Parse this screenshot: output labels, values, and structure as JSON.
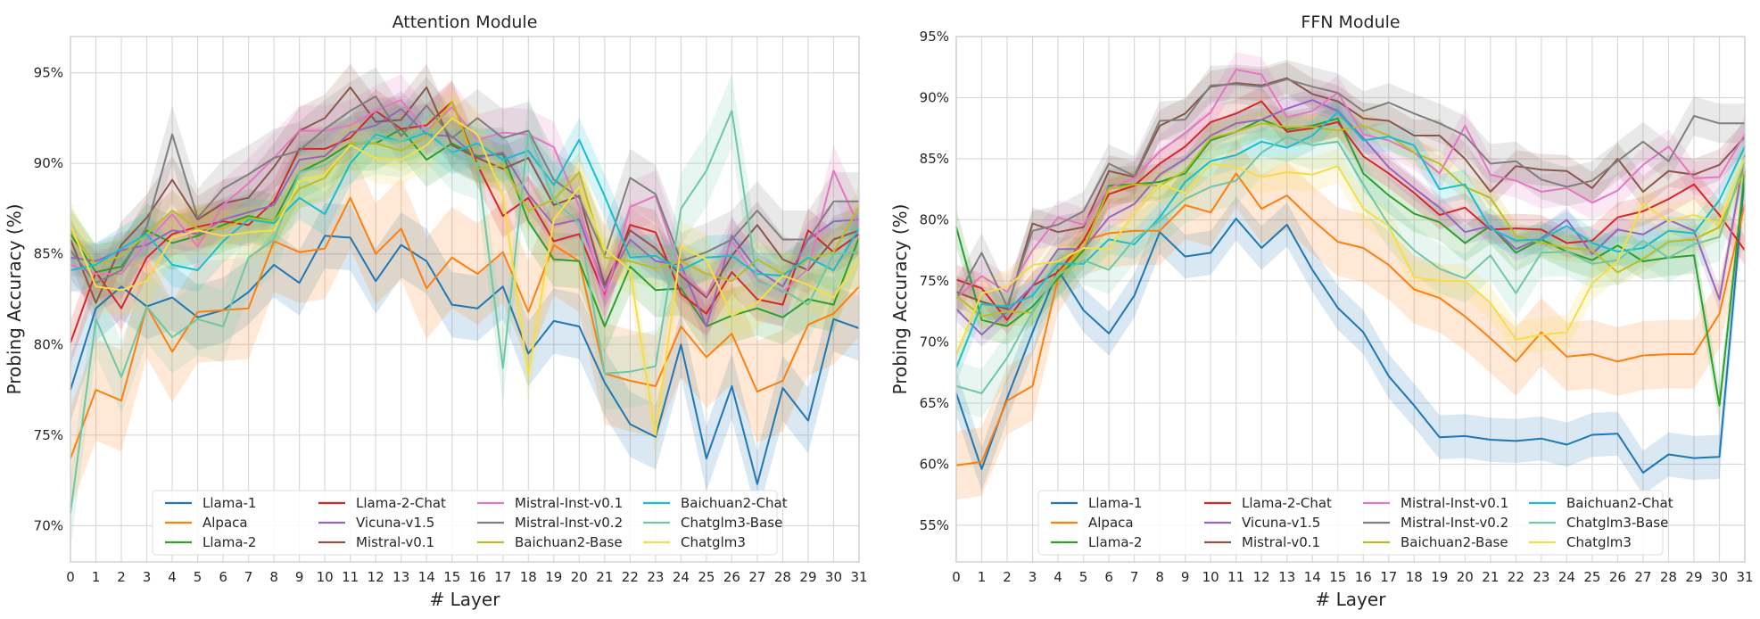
{
  "chart_data": [
    {
      "type": "line",
      "title": "Attention Module",
      "xlabel": "# Layer",
      "ylabel": "Probing Accuracy (%)",
      "x": [
        0,
        1,
        2,
        3,
        4,
        5,
        6,
        7,
        8,
        9,
        10,
        11,
        12,
        13,
        14,
        15,
        16,
        17,
        18,
        19,
        20,
        21,
        22,
        23,
        24,
        25,
        26,
        27,
        28,
        29,
        30,
        31
      ],
      "xlim": [
        0,
        31
      ],
      "ylim": [
        68.0,
        97.0
      ],
      "yticks": [
        70,
        75,
        80,
        85,
        90,
        95
      ],
      "yticklabels": [
        "70%",
        "75%",
        "80%",
        "85%",
        "90%",
        "95%"
      ],
      "grid": true,
      "legend_position": "lower center",
      "series": [
        {
          "name": "Llama-1",
          "values": [
            77.5,
            82.0,
            83.2,
            82.1,
            82.6,
            81.5,
            81.9,
            82.9,
            84.4,
            83.4,
            86.0,
            85.9,
            83.5,
            85.5,
            84.6,
            82.2,
            82.0,
            83.2,
            79.5,
            81.3,
            81.0,
            77.9,
            75.6,
            74.9,
            80.0,
            73.7,
            77.7,
            72.3,
            77.6,
            75.8,
            81.4,
            80.9
          ]
        },
        {
          "name": "Alpaca",
          "values": [
            73.7,
            77.5,
            76.9,
            82.1,
            79.6,
            81.8,
            81.9,
            82.0,
            85.7,
            85.1,
            85.3,
            88.1,
            85.0,
            86.4,
            83.1,
            84.8,
            83.9,
            85.1,
            81.8,
            85.5,
            84.6,
            78.4,
            78.0,
            77.7,
            81.0,
            79.3,
            80.6,
            77.4,
            78.0,
            81.1,
            81.7,
            83.2
          ]
        },
        {
          "name": "Llama-2",
          "values": [
            86.1,
            84.0,
            84.3,
            86.3,
            85.6,
            86.0,
            86.6,
            87.1,
            86.8,
            89.5,
            90.2,
            91.1,
            91.1,
            91.9,
            90.2,
            91.1,
            90.4,
            90.5,
            86.8,
            84.7,
            84.6,
            81.0,
            84.3,
            83.0,
            83.1,
            81.0,
            81.6,
            82.0,
            81.5,
            82.5,
            82.2,
            85.9
          ]
        },
        {
          "name": "Llama-2-Chat",
          "values": [
            80.1,
            84.0,
            82.0,
            84.8,
            86.1,
            86.5,
            86.8,
            86.6,
            87.9,
            90.8,
            90.8,
            91.4,
            92.9,
            91.9,
            92.1,
            93.4,
            89.9,
            87.1,
            88.1,
            85.7,
            86.1,
            82.7,
            86.6,
            86.2,
            82.8,
            81.7,
            84.0,
            82.5,
            82.2,
            86.3,
            85.1,
            86.1
          ]
        },
        {
          "name": "Vicuna-v1.5",
          "values": [
            84.8,
            84.6,
            85.2,
            85.5,
            86.3,
            86.1,
            86.9,
            87.3,
            87.7,
            90.2,
            90.4,
            91.7,
            92.1,
            93.0,
            91.6,
            91.5,
            90.3,
            90.6,
            88.3,
            86.6,
            86.9,
            83.1,
            85.8,
            84.6,
            84.4,
            81.0,
            86.0,
            84.1,
            83.2,
            85.8,
            86.8,
            86.9
          ]
        },
        {
          "name": "Mistral-v0.1",
          "values": [
            85.8,
            82.3,
            85.5,
            87.0,
            89.1,
            86.9,
            87.8,
            88.1,
            89.8,
            91.8,
            92.5,
            94.2,
            92.3,
            92.4,
            94.2,
            91.0,
            90.3,
            89.7,
            90.3,
            87.7,
            88.2,
            83.3,
            86.3,
            85.3,
            83.8,
            82.6,
            84.9,
            86.6,
            84.7,
            84.1,
            85.8,
            86.3
          ]
        },
        {
          "name": "Mistral-Inst-v0.1",
          "values": [
            84.4,
            83.9,
            83.9,
            85.7,
            87.2,
            85.4,
            87.7,
            88.9,
            90.3,
            91.8,
            91.8,
            92.1,
            92.9,
            93.5,
            91.8,
            93.1,
            91.3,
            91.7,
            91.6,
            90.9,
            87.6,
            82.5,
            87.6,
            88.2,
            84.0,
            82.7,
            85.7,
            83.6,
            82.9,
            84.2,
            89.6,
            86.5
          ]
        },
        {
          "name": "Mistral-Inst-v0.2",
          "values": [
            85.2,
            83.4,
            84.1,
            86.5,
            91.6,
            87.0,
            88.6,
            89.4,
            90.3,
            90.7,
            91.9,
            92.9,
            93.7,
            91.5,
            93.2,
            91.4,
            92.5,
            91.4,
            91.8,
            89.1,
            88.1,
            84.9,
            89.2,
            88.3,
            84.6,
            85.1,
            85.8,
            87.4,
            85.8,
            85.8,
            87.9,
            87.9
          ]
        },
        {
          "name": "Baichuan2-Base",
          "values": [
            86.3,
            84.4,
            84.9,
            86.1,
            87.4,
            86.4,
            86.4,
            87.0,
            86.8,
            88.6,
            89.2,
            91.1,
            91.1,
            90.7,
            91.5,
            93.4,
            89.7,
            89.9,
            87.4,
            88.0,
            89.5,
            84.8,
            84.6,
            84.2,
            84.6,
            83.9,
            83.5,
            84.7,
            83.9,
            84.7,
            85.1,
            87.6
          ]
        },
        {
          "name": "Baichuan2-Chat",
          "values": [
            84.1,
            84.4,
            85.3,
            86.1,
            84.4,
            84.1,
            85.7,
            86.9,
            86.7,
            88.1,
            87.2,
            90.0,
            91.6,
            91.2,
            91.7,
            90.6,
            91.1,
            90.2,
            90.7,
            88.8,
            91.3,
            88.2,
            84.8,
            84.9,
            84.1,
            84.8,
            84.9,
            83.9,
            83.8,
            84.8,
            84.1,
            86.4
          ]
        },
        {
          "name": "Chatglm3-Base",
          "values": [
            70.7,
            81.4,
            78.2,
            82.1,
            80.4,
            81.4,
            81.0,
            84.8,
            85.8,
            89.5,
            89.9,
            90.9,
            91.4,
            91.2,
            92.0,
            90.5,
            90.0,
            78.7,
            91.7,
            88.0,
            86.7,
            78.4,
            78.5,
            78.8,
            87.5,
            89.6,
            92.9,
            83.5,
            83.0,
            82.2,
            85.0,
            85.1
          ]
        },
        {
          "name": "Chatglm3",
          "values": [
            86.6,
            83.2,
            83.0,
            83.5,
            85.9,
            86.3,
            86.0,
            86.2,
            86.3,
            89.0,
            89.4,
            91.0,
            90.3,
            90.2,
            91.0,
            92.5,
            91.6,
            88.2,
            78.3,
            86.9,
            88.7,
            85.3,
            84.1,
            75.0,
            85.4,
            84.7,
            81.6,
            82.3,
            83.8,
            83.3,
            82.6,
            84.7
          ]
        }
      ]
    },
    {
      "type": "line",
      "title": "FFN Module",
      "xlabel": "# Layer",
      "ylabel": "Probing Accuracy (%)",
      "x": [
        0,
        1,
        2,
        3,
        4,
        5,
        6,
        7,
        8,
        9,
        10,
        11,
        12,
        13,
        14,
        15,
        16,
        17,
        18,
        19,
        20,
        21,
        22,
        23,
        24,
        25,
        26,
        27,
        28,
        29,
        30,
        31
      ],
      "xlim": [
        0,
        31
      ],
      "ylim": [
        52.0,
        95.0
      ],
      "yticks": [
        55,
        60,
        65,
        70,
        75,
        80,
        85,
        90,
        95
      ],
      "yticklabels": [
        "55%",
        "60%",
        "65%",
        "70%",
        "75%",
        "80%",
        "85%",
        "90%",
        "95%"
      ],
      "grid": true,
      "legend_position": "lower center",
      "series": [
        {
          "name": "Llama-1",
          "values": [
            65.8,
            59.6,
            65.4,
            70.8,
            75.9,
            72.6,
            70.7,
            73.8,
            79.0,
            77.0,
            77.3,
            80.1,
            77.7,
            79.6,
            75.9,
            72.8,
            70.8,
            67.2,
            64.8,
            62.2,
            62.3,
            62.0,
            61.9,
            62.1,
            61.6,
            62.4,
            62.5,
            59.3,
            60.8,
            60.5,
            60.6,
            83.7
          ]
        },
        {
          "name": "Alpaca",
          "values": [
            59.9,
            60.2,
            65.2,
            66.4,
            75.2,
            78.3,
            78.9,
            79.1,
            79.1,
            81.2,
            80.6,
            83.8,
            80.9,
            82.0,
            80.0,
            78.2,
            77.7,
            76.3,
            74.3,
            73.6,
            72.1,
            70.3,
            68.4,
            70.8,
            68.8,
            69.0,
            68.4,
            68.9,
            69.0,
            69.0,
            72.3,
            81.3
          ]
        },
        {
          "name": "Llama-2",
          "values": [
            79.4,
            71.8,
            71.3,
            72.9,
            75.2,
            77.5,
            82.8,
            82.9,
            83.1,
            83.8,
            86.5,
            87.2,
            88.2,
            87.4,
            87.7,
            88.3,
            83.8,
            82.0,
            80.5,
            79.8,
            78.1,
            79.5,
            77.3,
            78.4,
            77.4,
            76.7,
            77.9,
            76.6,
            76.9,
            77.1,
            64.8,
            84.0
          ]
        },
        {
          "name": "Llama-2-Chat",
          "values": [
            75.1,
            74.4,
            71.8,
            74.6,
            75.7,
            78.3,
            82.1,
            82.8,
            84.6,
            86.0,
            88.0,
            88.7,
            89.7,
            87.2,
            87.5,
            88.0,
            85.2,
            83.8,
            82.2,
            80.4,
            81.0,
            79.2,
            79.3,
            79.2,
            78.1,
            78.3,
            80.2,
            80.7,
            81.7,
            82.9,
            80.4,
            77.5
          ]
        },
        {
          "name": "Vicuna-v1.5",
          "values": [
            72.7,
            70.6,
            72.5,
            74.6,
            77.6,
            77.6,
            80.2,
            81.3,
            83.7,
            85.0,
            86.9,
            87.9,
            88.2,
            89.1,
            89.8,
            88.9,
            86.7,
            84.3,
            82.6,
            81.0,
            79.0,
            79.5,
            77.6,
            78.5,
            80.0,
            77.2,
            79.2,
            78.8,
            80.0,
            79.1,
            73.5,
            85.3
          ]
        },
        {
          "name": "Mistral-v0.1",
          "values": [
            74.1,
            73.3,
            72.7,
            79.7,
            79.0,
            79.4,
            84.0,
            83.5,
            87.7,
            88.7,
            90.9,
            91.2,
            91.0,
            91.6,
            90.3,
            89.7,
            88.3,
            88.1,
            86.9,
            86.9,
            85.0,
            82.3,
            84.4,
            84.1,
            84.0,
            82.6,
            85.0,
            82.3,
            84.0,
            83.7,
            84.5,
            86.8
          ]
        },
        {
          "name": "Mistral-Inst-v0.1",
          "values": [
            73.6,
            75.4,
            74.1,
            77.5,
            80.2,
            79.6,
            82.6,
            83.4,
            85.6,
            87.1,
            88.8,
            92.3,
            91.9,
            88.4,
            88.9,
            90.4,
            87.0,
            86.5,
            85.5,
            83.8,
            87.7,
            83.7,
            83.2,
            82.3,
            82.6,
            81.4,
            82.4,
            84.5,
            86.0,
            83.4,
            83.5,
            87.0
          ]
        },
        {
          "name": "Mistral-Inst-v0.2",
          "values": [
            73.6,
            77.3,
            72.9,
            79.1,
            79.6,
            80.7,
            84.6,
            83.6,
            88.1,
            88.2,
            91.0,
            91.1,
            90.9,
            91.5,
            90.9,
            90.4,
            88.9,
            89.6,
            88.7,
            87.9,
            86.9,
            84.6,
            84.8,
            83.3,
            82.7,
            83.2,
            84.8,
            86.4,
            84.8,
            88.5,
            87.9,
            87.9
          ]
        },
        {
          "name": "Baichuan2-Base",
          "values": [
            73.8,
            72.1,
            72.5,
            72.4,
            75.6,
            77.7,
            82.5,
            82.9,
            82.8,
            84.0,
            86.7,
            87.2,
            87.9,
            87.6,
            87.6,
            87.3,
            87.7,
            86.9,
            85.5,
            84.6,
            82.7,
            81.8,
            78.7,
            78.1,
            77.7,
            77.5,
            75.7,
            76.8,
            78.2,
            78.4,
            79.4,
            84.1
          ]
        },
        {
          "name": "Baichuan2-Chat",
          "values": [
            67.9,
            73.1,
            72.9,
            73.8,
            76.4,
            76.4,
            78.4,
            78.0,
            80.2,
            83.1,
            84.8,
            85.3,
            86.4,
            85.9,
            86.9,
            88.8,
            86.5,
            86.8,
            86.1,
            82.5,
            82.9,
            79.3,
            78.3,
            78.4,
            79.5,
            78.1,
            77.4,
            77.7,
            79.1,
            78.9,
            81.6,
            86.0
          ]
        },
        {
          "name": "Chatglm3-Base",
          "values": [
            66.4,
            65.8,
            68.7,
            72.5,
            75.5,
            76.7,
            75.9,
            78.4,
            79.9,
            81.7,
            82.7,
            83.2,
            85.5,
            86.8,
            86.1,
            86.4,
            82.9,
            79.6,
            77.5,
            76.0,
            75.2,
            77.1,
            74.0,
            77.3,
            77.4,
            76.4,
            76.7,
            78.3,
            76.9,
            78.0,
            78.6,
            84.9
          ]
        },
        {
          "name": "Chatglm3",
          "values": [
            69.0,
            74.0,
            74.5,
            76.3,
            76.6,
            77.7,
            77.6,
            80.6,
            82.9,
            82.2,
            84.6,
            84.3,
            83.5,
            83.9,
            83.7,
            84.4,
            80.9,
            79.5,
            75.3,
            75.0,
            75.0,
            73.2,
            70.2,
            70.6,
            70.8,
            74.8,
            76.6,
            81.3,
            79.9,
            80.4,
            79.7,
            85.1
          ]
        }
      ]
    }
  ],
  "colors": [
    "#1f77b4",
    "#ff7f0e",
    "#2ca02c",
    "#d62728",
    "#9467bd",
    "#8c564b",
    "#e377c2",
    "#7f7f7f",
    "#bcbd22",
    "#17becf",
    "#6fc7a5",
    "#f5dd4a"
  ]
}
